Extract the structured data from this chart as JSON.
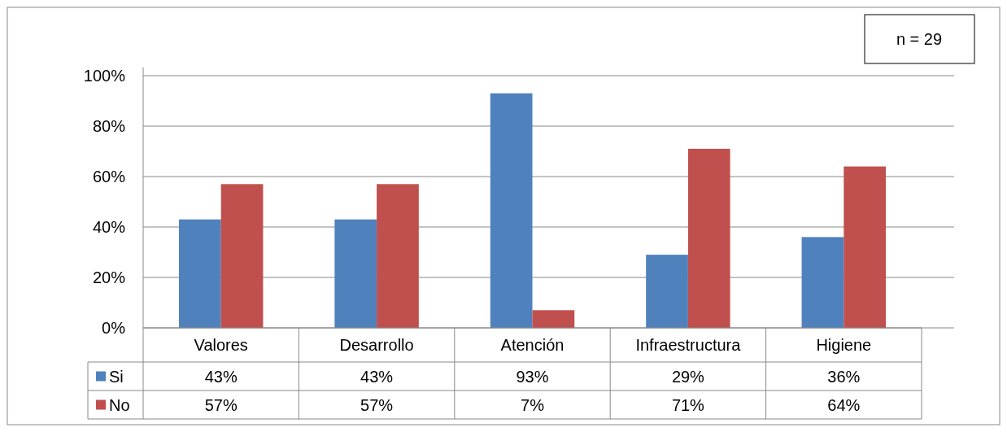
{
  "chart_data": {
    "type": "bar",
    "categories": [
      "Valores",
      "Desarrollo",
      "Atención",
      "Infraestructura",
      "Higiene"
    ],
    "series": [
      {
        "name": "Si",
        "color": "#4f81bd",
        "values": [
          43,
          43,
          93,
          29,
          36
        ],
        "value_labels": [
          "43%",
          "43%",
          "93%",
          "29%",
          "36%"
        ]
      },
      {
        "name": "No",
        "color": "#c0504d",
        "values": [
          57,
          57,
          7,
          71,
          64
        ],
        "value_labels": [
          "57%",
          "57%",
          "7%",
          "71%",
          "64%"
        ]
      }
    ],
    "ylim": [
      0,
      100
    ],
    "yticks": [
      {
        "value": 0,
        "label": "0%"
      },
      {
        "value": 20,
        "label": "20%"
      },
      {
        "value": 40,
        "label": "40%"
      },
      {
        "value": 60,
        "label": "60%"
      },
      {
        "value": 80,
        "label": "80%"
      },
      {
        "value": 100,
        "label": "100%"
      }
    ],
    "grid": "y",
    "legend": "bottom",
    "annotations": [
      "n = 29"
    ]
  }
}
